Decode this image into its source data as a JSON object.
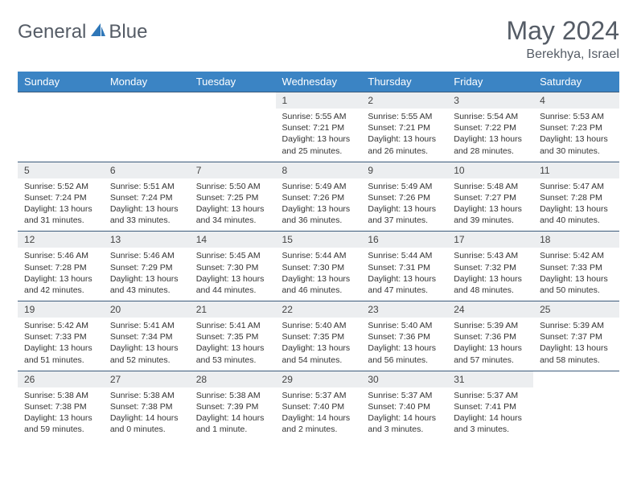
{
  "brand": {
    "name1": "General",
    "name2": "Blue"
  },
  "title": "May 2024",
  "location": "Berekhya, Israel",
  "colors": {
    "header_bg": "#3b84c4",
    "header_text": "#ffffff",
    "daynum_bg": "#eceef0",
    "row_border": "#3b5a7a",
    "text": "#333333",
    "brand_text": "#555c66",
    "logo_blue": "#2f77b8"
  },
  "typography": {
    "title_fontsize": 32,
    "location_fontsize": 16,
    "dayhead_fontsize": 13,
    "daynum_fontsize": 12,
    "body_fontsize": 10.5
  },
  "weekdays": [
    "Sunday",
    "Monday",
    "Tuesday",
    "Wednesday",
    "Thursday",
    "Friday",
    "Saturday"
  ],
  "weeks": [
    [
      null,
      null,
      null,
      {
        "n": "1",
        "sr": "5:55 AM",
        "ss": "7:21 PM",
        "dh": "13",
        "dm": "25"
      },
      {
        "n": "2",
        "sr": "5:55 AM",
        "ss": "7:21 PM",
        "dh": "13",
        "dm": "26"
      },
      {
        "n": "3",
        "sr": "5:54 AM",
        "ss": "7:22 PM",
        "dh": "13",
        "dm": "28"
      },
      {
        "n": "4",
        "sr": "5:53 AM",
        "ss": "7:23 PM",
        "dh": "13",
        "dm": "30"
      }
    ],
    [
      {
        "n": "5",
        "sr": "5:52 AM",
        "ss": "7:24 PM",
        "dh": "13",
        "dm": "31"
      },
      {
        "n": "6",
        "sr": "5:51 AM",
        "ss": "7:24 PM",
        "dh": "13",
        "dm": "33"
      },
      {
        "n": "7",
        "sr": "5:50 AM",
        "ss": "7:25 PM",
        "dh": "13",
        "dm": "34"
      },
      {
        "n": "8",
        "sr": "5:49 AM",
        "ss": "7:26 PM",
        "dh": "13",
        "dm": "36"
      },
      {
        "n": "9",
        "sr": "5:49 AM",
        "ss": "7:26 PM",
        "dh": "13",
        "dm": "37"
      },
      {
        "n": "10",
        "sr": "5:48 AM",
        "ss": "7:27 PM",
        "dh": "13",
        "dm": "39"
      },
      {
        "n": "11",
        "sr": "5:47 AM",
        "ss": "7:28 PM",
        "dh": "13",
        "dm": "40"
      }
    ],
    [
      {
        "n": "12",
        "sr": "5:46 AM",
        "ss": "7:28 PM",
        "dh": "13",
        "dm": "42"
      },
      {
        "n": "13",
        "sr": "5:46 AM",
        "ss": "7:29 PM",
        "dh": "13",
        "dm": "43"
      },
      {
        "n": "14",
        "sr": "5:45 AM",
        "ss": "7:30 PM",
        "dh": "13",
        "dm": "44"
      },
      {
        "n": "15",
        "sr": "5:44 AM",
        "ss": "7:30 PM",
        "dh": "13",
        "dm": "46"
      },
      {
        "n": "16",
        "sr": "5:44 AM",
        "ss": "7:31 PM",
        "dh": "13",
        "dm": "47"
      },
      {
        "n": "17",
        "sr": "5:43 AM",
        "ss": "7:32 PM",
        "dh": "13",
        "dm": "48"
      },
      {
        "n": "18",
        "sr": "5:42 AM",
        "ss": "7:33 PM",
        "dh": "13",
        "dm": "50"
      }
    ],
    [
      {
        "n": "19",
        "sr": "5:42 AM",
        "ss": "7:33 PM",
        "dh": "13",
        "dm": "51"
      },
      {
        "n": "20",
        "sr": "5:41 AM",
        "ss": "7:34 PM",
        "dh": "13",
        "dm": "52"
      },
      {
        "n": "21",
        "sr": "5:41 AM",
        "ss": "7:35 PM",
        "dh": "13",
        "dm": "53"
      },
      {
        "n": "22",
        "sr": "5:40 AM",
        "ss": "7:35 PM",
        "dh": "13",
        "dm": "54"
      },
      {
        "n": "23",
        "sr": "5:40 AM",
        "ss": "7:36 PM",
        "dh": "13",
        "dm": "56"
      },
      {
        "n": "24",
        "sr": "5:39 AM",
        "ss": "7:36 PM",
        "dh": "13",
        "dm": "57"
      },
      {
        "n": "25",
        "sr": "5:39 AM",
        "ss": "7:37 PM",
        "dh": "13",
        "dm": "58"
      }
    ],
    [
      {
        "n": "26",
        "sr": "5:38 AM",
        "ss": "7:38 PM",
        "dh": "13",
        "dm": "59"
      },
      {
        "n": "27",
        "sr": "5:38 AM",
        "ss": "7:38 PM",
        "dh": "14",
        "dm": "0"
      },
      {
        "n": "28",
        "sr": "5:38 AM",
        "ss": "7:39 PM",
        "dh": "14",
        "dm": "1",
        "dmin_word": "minute"
      },
      {
        "n": "29",
        "sr": "5:37 AM",
        "ss": "7:40 PM",
        "dh": "14",
        "dm": "2"
      },
      {
        "n": "30",
        "sr": "5:37 AM",
        "ss": "7:40 PM",
        "dh": "14",
        "dm": "3"
      },
      {
        "n": "31",
        "sr": "5:37 AM",
        "ss": "7:41 PM",
        "dh": "14",
        "dm": "3"
      },
      null
    ]
  ],
  "labels": {
    "sunrise": "Sunrise:",
    "sunset": "Sunset:",
    "daylight": "Daylight:",
    "hours": "hours",
    "and": "and",
    "minutes": "minutes"
  }
}
